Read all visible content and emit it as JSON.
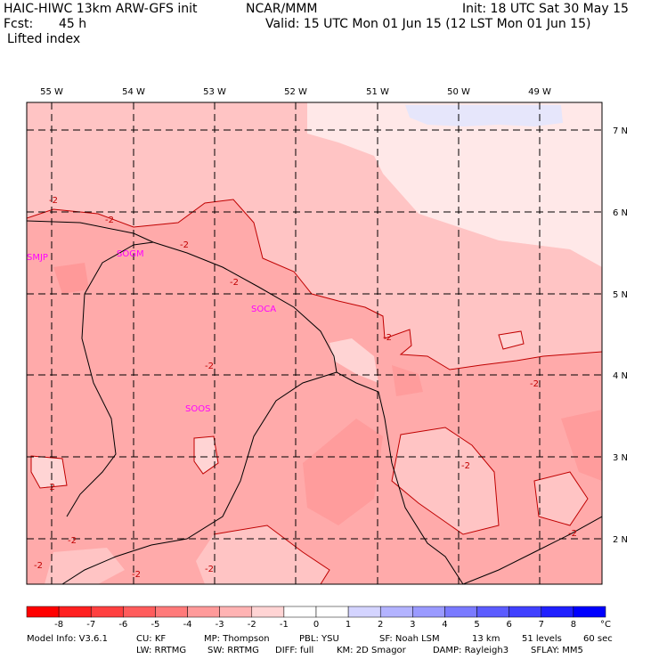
{
  "header": {
    "model_title": "HAIC-HIWC 13km ARW-GFS init",
    "org": "NCAR/MMM",
    "init": "Init: 18 UTC Sat 30 May 15",
    "fcst_label": "Fcst:",
    "fcst_value": "45 h",
    "valid": "Valid: 15 UTC Mon 01 Jun 15 (12 LST Mon 01 Jun 15)",
    "field": "Lifted index"
  },
  "map": {
    "lon_labels": [
      "55 W",
      "54 W",
      "53 W",
      "52 W",
      "51 W",
      "50 W",
      "49 W"
    ],
    "lat_labels": [
      "7 N",
      "6 N",
      "5 N",
      "4 N",
      "3 N",
      "2 N"
    ],
    "region_labels": [
      "SMJP",
      "SOGM",
      "SOCA",
      "SOOS"
    ],
    "contour_label": "-2",
    "colors": {
      "land_light": "#ffd4d4",
      "mid": "#ffb3b3",
      "deep": "#ff9a9a",
      "positive": "#e8e8ff"
    }
  },
  "colorbar": {
    "unit": "°C",
    "ticks": [
      "-8",
      "-7",
      "-6",
      "-5",
      "-4",
      "-3",
      "-2",
      "-1",
      "0",
      "1",
      "2",
      "3",
      "4",
      "5",
      "6",
      "7",
      "8"
    ],
    "colors": [
      "#ff0000",
      "#ff2020",
      "#ff4040",
      "#ff5c5c",
      "#ff7a7a",
      "#ff9a9a",
      "#ffb3b3",
      "#ffd4d4",
      "#ffffff",
      "#ffffff",
      "#d4d4ff",
      "#b3b3ff",
      "#9a9aff",
      "#7a7aff",
      "#5c5cff",
      "#4040ff",
      "#2020ff",
      "#0000ff"
    ]
  },
  "footer": {
    "line1": [
      "Model Info: V3.6.1",
      "CU: KF",
      "MP: Thompson",
      "PBL: YSU",
      "SF: Noah LSM",
      "13 km",
      "51 levels",
      "60 sec"
    ],
    "line2": [
      "LW: RRTMG",
      "SW: RRTMG",
      "DIFF: full",
      "KM: 2D Smagor",
      "DAMP: Rayleigh3",
      "SFLAY: MM5"
    ]
  }
}
